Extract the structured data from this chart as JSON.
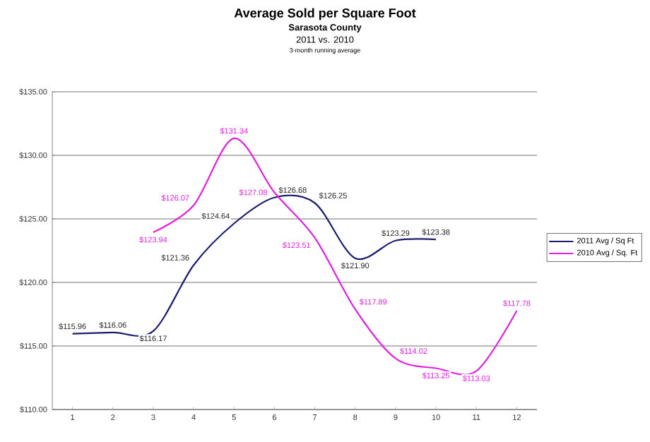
{
  "chart_data": {
    "type": "line",
    "title": "Average Sold per Square Foot",
    "subtitle": "Sarasota County",
    "annotations": [
      "2011 vs. 2010",
      "3-month running average"
    ],
    "xlim": [
      0.5,
      12.5
    ],
    "xticks": [
      1,
      2,
      3,
      4,
      5,
      6,
      7,
      8,
      9,
      10,
      11,
      12
    ],
    "ylim": [
      110,
      135
    ],
    "yticks": [
      {
        "value": 110,
        "label": "$110.00"
      },
      {
        "value": 115,
        "label": "$115.00"
      },
      {
        "value": 120,
        "label": "$120.00"
      },
      {
        "value": 125,
        "label": "$125.00"
      },
      {
        "value": 130,
        "label": "$130.00"
      },
      {
        "value": 135,
        "label": "$135.00"
      }
    ],
    "grid": "y",
    "legend": "right",
    "marker": "none",
    "line_style": "solid",
    "series": [
      {
        "name": "2011 Avg / Sq Ft",
        "color": "#1c1c6c",
        "x": [
          1,
          2,
          3,
          4,
          5,
          6,
          7,
          8,
          9,
          10
        ],
        "values": [
          115.96,
          116.06,
          116.17,
          121.36,
          124.64,
          126.68,
          126.25,
          121.9,
          123.29,
          123.38
        ],
        "value_labels": [
          "$115.96",
          "$116.06",
          "$116.17",
          "$121.36",
          "$124.64",
          "$126.68",
          "$126.25",
          "$121.90",
          "$123.29",
          "$123.38"
        ]
      },
      {
        "name": "2010 Avg / Sq. Ft",
        "color": "#e020e0",
        "x": [
          3,
          4,
          5,
          6,
          7,
          8,
          9,
          10,
          11,
          12
        ],
        "values": [
          123.94,
          126.07,
          131.34,
          127.08,
          123.51,
          117.89,
          114.02,
          113.25,
          113.03,
          117.78
        ],
        "value_labels": [
          "$123.94",
          "$126.07",
          "$131.34",
          "$127.08",
          "$123.51",
          "$117.89",
          "$114.02",
          "$113.25",
          "$113.03",
          "$117.78"
        ]
      }
    ]
  }
}
